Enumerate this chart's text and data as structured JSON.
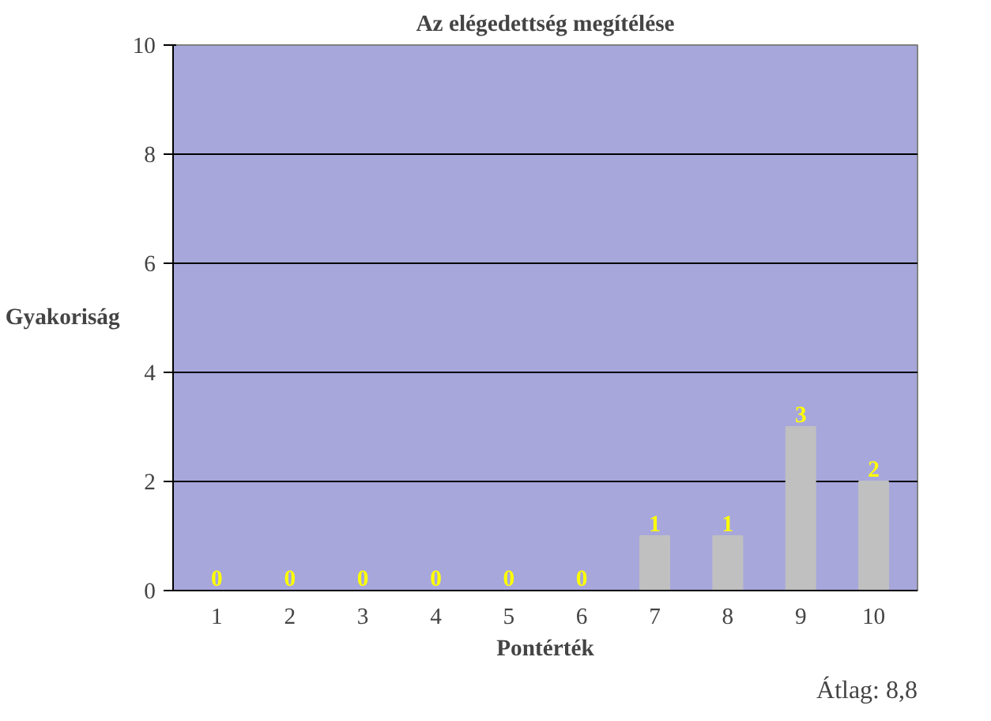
{
  "chart_data": {
    "type": "bar",
    "title": "Az elégedettség megítélése",
    "xlabel": "Pontérték",
    "ylabel": "Gyakoriság",
    "categories": [
      "1",
      "2",
      "3",
      "4",
      "5",
      "6",
      "7",
      "8",
      "9",
      "10"
    ],
    "values": [
      0,
      0,
      0,
      0,
      0,
      0,
      1,
      1,
      3,
      2
    ],
    "color": "#c0c0c0",
    "ylim": [
      0,
      10
    ],
    "yticks": [
      0,
      2,
      4,
      6,
      8,
      10
    ],
    "grid": "y",
    "data_labels": true,
    "annotations": [
      "Átlag: 8,8"
    ]
  }
}
